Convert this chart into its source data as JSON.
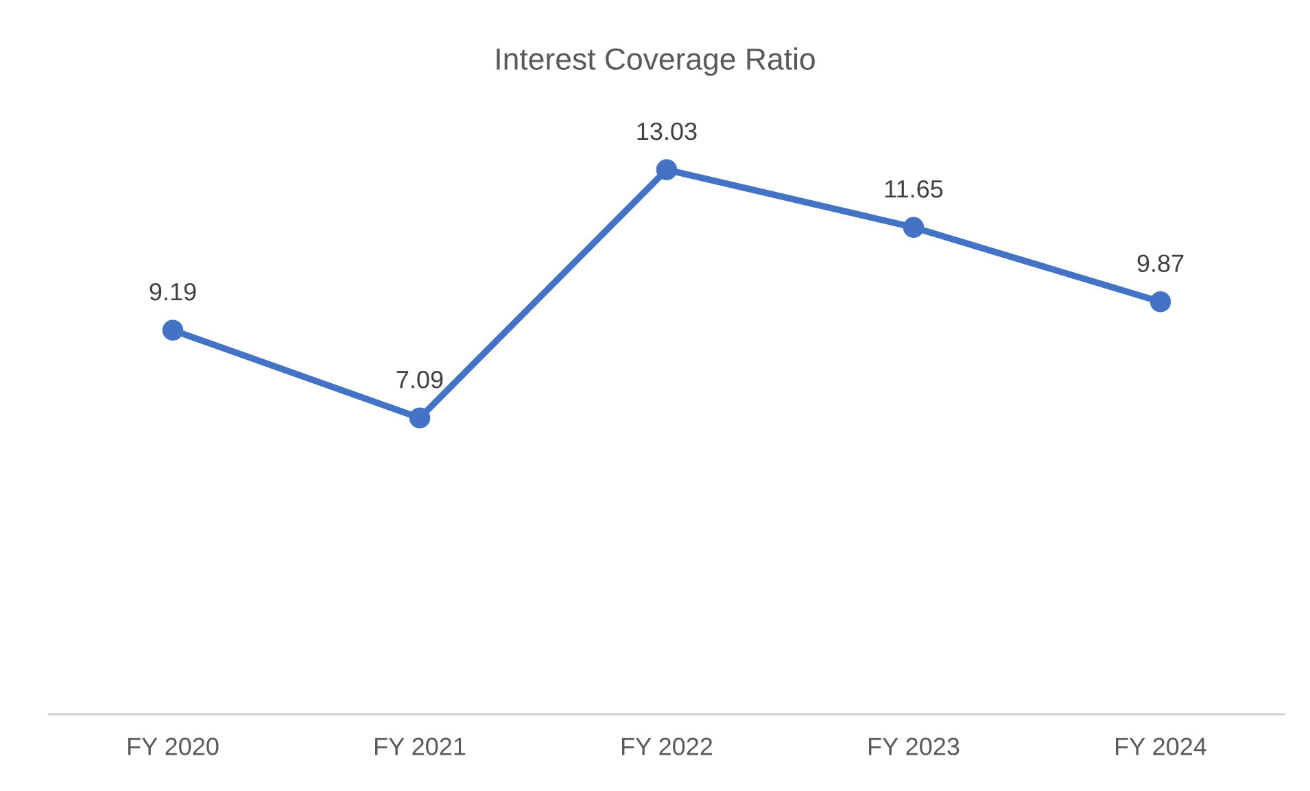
{
  "chart_data": {
    "type": "line",
    "title": "Interest Coverage Ratio",
    "categories": [
      "FY 2020",
      "FY 2021",
      "FY 2022",
      "FY 2023",
      "FY 2024"
    ],
    "series": [
      {
        "color": "#4472c4",
        "values": [
          9.19,
          7.09,
          13.03,
          11.65,
          9.87
        ]
      }
    ],
    "tick_labels": "x",
    "marker": "circle",
    "line_style": "solid",
    "data_labels": true
  }
}
